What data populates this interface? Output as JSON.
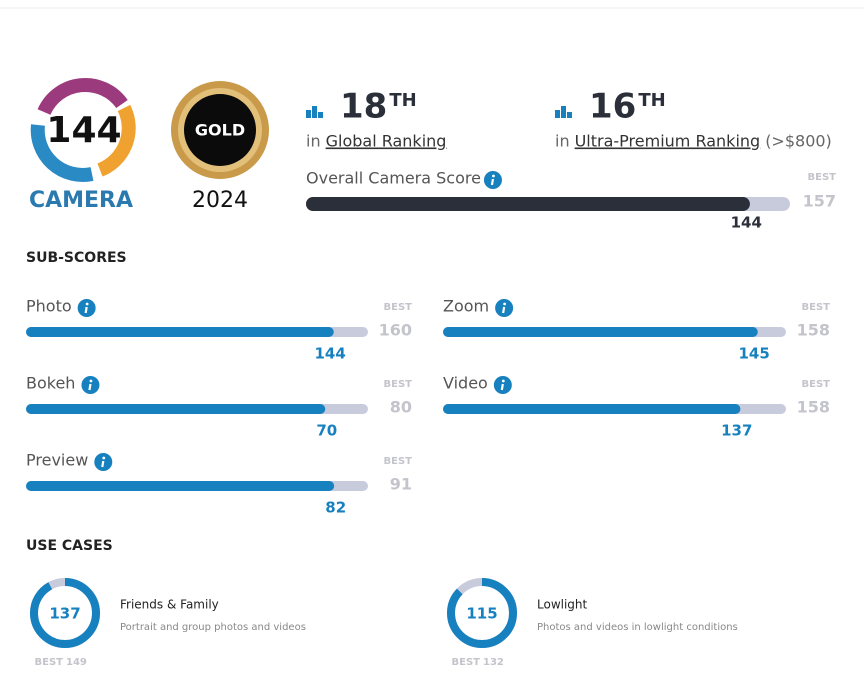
{
  "badges": {
    "camera_label": "CAMERA",
    "award": "GOLD",
    "year": "2024"
  },
  "rankings": [
    {
      "rank": 18,
      "suffix": "TH",
      "prefix": "in",
      "name": "Global Ranking"
    },
    {
      "rank": 16,
      "suffix": "TH",
      "prefix": "in",
      "name": "Ultra-Premium Ranking",
      "note": "(>$800)"
    }
  ],
  "overall": {
    "label": "Overall Camera Score",
    "score": 144,
    "best_label": "BEST",
    "best": 157
  },
  "sub_scores": {
    "title": "SUB-SCORES",
    "best_label": "BEST",
    "items": [
      {
        "name": "Photo",
        "score": 144,
        "best": 160
      },
      {
        "name": "Zoom",
        "score": 145,
        "best": 158
      },
      {
        "name": "Bokeh",
        "score": 70,
        "best": 80
      },
      {
        "name": "Video",
        "score": 137,
        "best": 158
      },
      {
        "name": "Preview",
        "score": 82,
        "best": 91
      }
    ]
  },
  "use_cases": {
    "title": "USE CASES",
    "best_label": "BEST",
    "items": [
      {
        "name": "Friends & Family",
        "description": "Portrait and group photos and videos",
        "score": 137,
        "best": 149
      },
      {
        "name": "Lowlight",
        "description": "Photos and videos in lowlight conditions",
        "score": 115,
        "best": 132
      }
    ]
  }
}
